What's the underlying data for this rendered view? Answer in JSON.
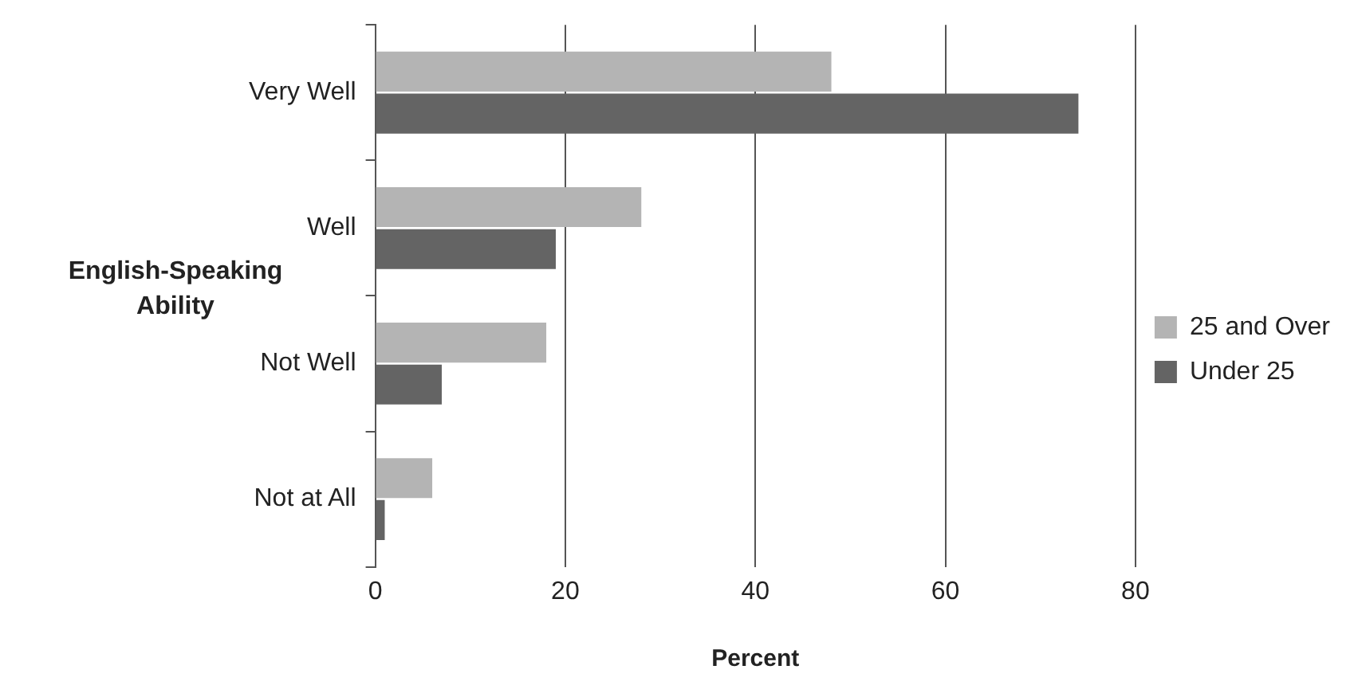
{
  "chart_data": {
    "type": "bar",
    "orientation": "horizontal",
    "xlabel": "Percent",
    "ylabel": "English-Speaking Ability",
    "categories": [
      "Very Well",
      "Well",
      "Not Well",
      "Not at All"
    ],
    "series": [
      {
        "name": "25 and Over",
        "color": "#b4b4b4",
        "values": [
          48,
          28,
          18,
          6
        ]
      },
      {
        "name": "Under 25",
        "color": "#646464",
        "values": [
          74,
          19,
          7,
          1
        ]
      }
    ],
    "xlim": [
      0,
      80
    ],
    "xticks": [
      0,
      20,
      40,
      60,
      80
    ],
    "grid": "x",
    "legend": "right"
  }
}
